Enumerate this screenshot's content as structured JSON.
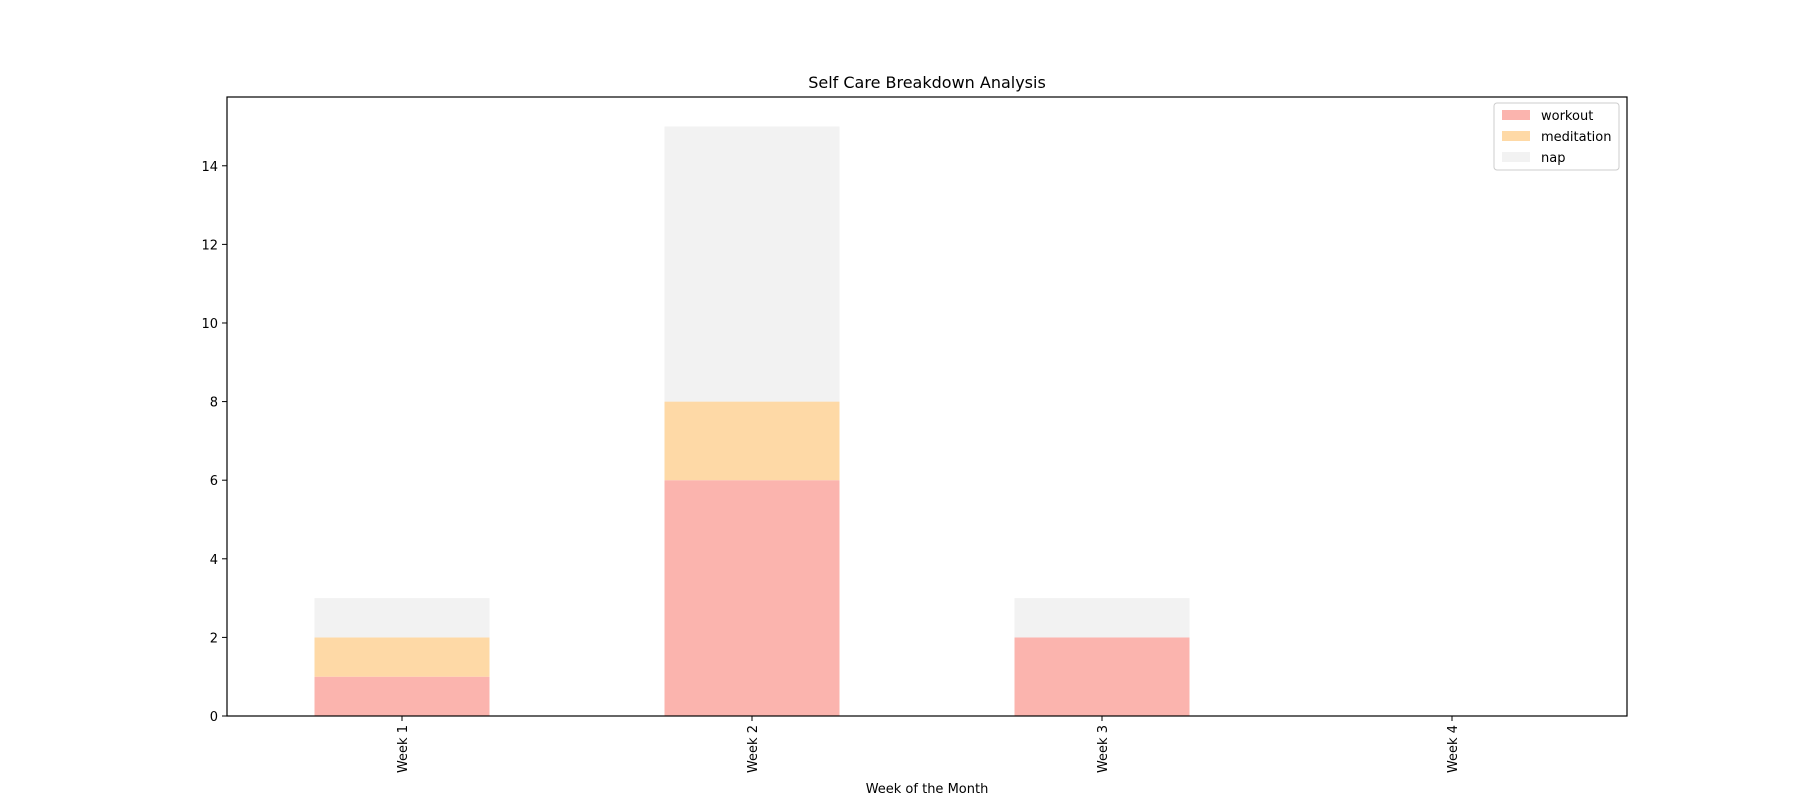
{
  "chart_data": {
    "type": "bar",
    "stacked": true,
    "title": "Self Care Breakdown Analysis",
    "xlabel": "Week of the Month",
    "ylabel": "",
    "categories": [
      "Week 1",
      "Week 2",
      "Week 3",
      "Week 4"
    ],
    "series": [
      {
        "name": "workout",
        "values": [
          1,
          6,
          2,
          0
        ],
        "color": "#fbb4ae"
      },
      {
        "name": "meditation",
        "values": [
          1,
          2,
          0,
          0
        ],
        "color": "#fed9a6"
      },
      {
        "name": "nap",
        "values": [
          1,
          7,
          1,
          0
        ],
        "color": "#f2f2f2"
      }
    ],
    "ylim": [
      0,
      15.75
    ],
    "yticks": [
      0,
      2,
      4,
      6,
      8,
      10,
      12,
      14
    ],
    "grid": false,
    "legend_position": "top-right",
    "tick_label_rotation": "vertical"
  }
}
